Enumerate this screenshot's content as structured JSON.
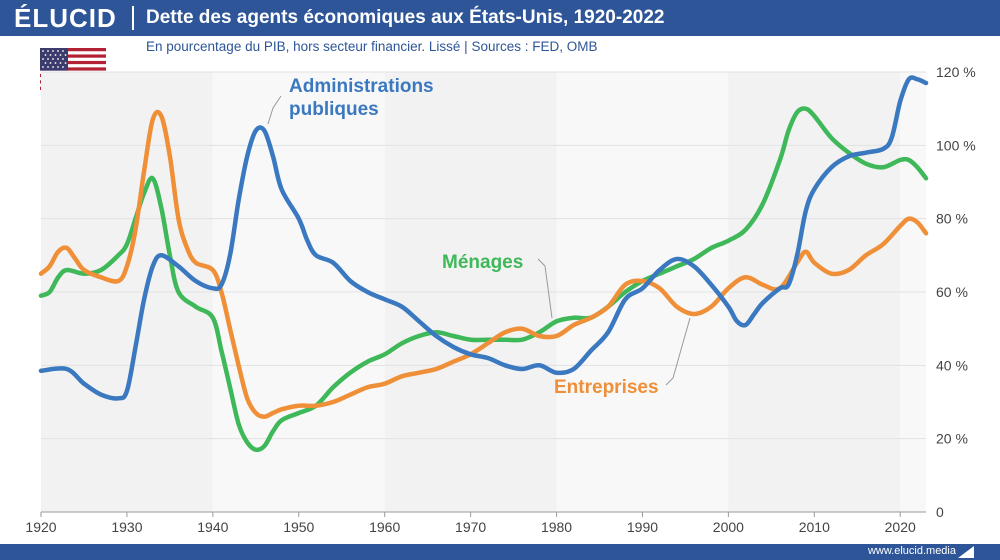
{
  "header": {
    "logo": "ÉLUCID",
    "title": "Dette des agents économiques aux États-Unis, 1920-2022",
    "subtitle": "En pourcentage du PIB, hors secteur financier. Lissé  |  Sources : FED, OMB"
  },
  "footer": {
    "url": "www.elucid.media"
  },
  "colors": {
    "brand": "#2d5598",
    "administrations": "#3a78c0",
    "menages": "#3fb85a",
    "entreprises": "#ef8f38"
  },
  "chart_data": {
    "type": "line",
    "title": "Dette des agents économiques aux États-Unis, 1920-2022",
    "subtitle": "En pourcentage du PIB, hors secteur financier. Lissé",
    "xlim": [
      1920,
      2023
    ],
    "ylim": [
      0,
      120
    ],
    "x_ticks": [
      "1920",
      "1930",
      "1940",
      "1950",
      "1960",
      "1970",
      "1980",
      "1990",
      "2000",
      "2010",
      "2020"
    ],
    "y_ticks": [
      "0",
      "20 %",
      "40 %",
      "60 %",
      "80 %",
      "100 %",
      "120 %"
    ],
    "grid": false,
    "legend": "inline labels",
    "series": [
      {
        "name": "Administrations publiques",
        "color": "#3a78c0",
        "points": [
          [
            1920,
            38.5
          ],
          [
            1923,
            39
          ],
          [
            1925,
            35
          ],
          [
            1927,
            32
          ],
          [
            1929,
            31
          ],
          [
            1930,
            33
          ],
          [
            1931,
            45
          ],
          [
            1932,
            58
          ],
          [
            1933,
            67
          ],
          [
            1934,
            70
          ],
          [
            1936,
            67
          ],
          [
            1938,
            63
          ],
          [
            1940,
            61
          ],
          [
            1941,
            62
          ],
          [
            1942,
            70
          ],
          [
            1943,
            85
          ],
          [
            1944,
            97
          ],
          [
            1945,
            104
          ],
          [
            1946,
            104
          ],
          [
            1947,
            97
          ],
          [
            1948,
            88
          ],
          [
            1950,
            80
          ],
          [
            1951,
            74
          ],
          [
            1952,
            70
          ],
          [
            1954,
            68
          ],
          [
            1956,
            63
          ],
          [
            1958,
            60
          ],
          [
            1960,
            58
          ],
          [
            1962,
            56
          ],
          [
            1964,
            52
          ],
          [
            1966,
            48
          ],
          [
            1968,
            45
          ],
          [
            1970,
            43
          ],
          [
            1972,
            42
          ],
          [
            1974,
            40
          ],
          [
            1976,
            39
          ],
          [
            1978,
            40
          ],
          [
            1980,
            38
          ],
          [
            1982,
            39
          ],
          [
            1984,
            44
          ],
          [
            1986,
            49
          ],
          [
            1988,
            58
          ],
          [
            1990,
            61
          ],
          [
            1992,
            66
          ],
          [
            1994,
            69
          ],
          [
            1996,
            67
          ],
          [
            1998,
            62
          ],
          [
            2000,
            56
          ],
          [
            2001,
            52
          ],
          [
            2002,
            51
          ],
          [
            2003,
            54
          ],
          [
            2004,
            57
          ],
          [
            2006,
            61
          ],
          [
            2007,
            62
          ],
          [
            2008,
            70
          ],
          [
            2009,
            82
          ],
          [
            2010,
            88
          ],
          [
            2012,
            94
          ],
          [
            2014,
            97
          ],
          [
            2016,
            98
          ],
          [
            2018,
            99
          ],
          [
            2019,
            102
          ],
          [
            2020,
            112
          ],
          [
            2021,
            118
          ],
          [
            2022,
            118
          ],
          [
            2023,
            117
          ]
        ]
      },
      {
        "name": "Ménages",
        "color": "#3fb85a",
        "points": [
          [
            1920,
            59
          ],
          [
            1921,
            60
          ],
          [
            1922,
            64
          ],
          [
            1923,
            66
          ],
          [
            1925,
            65
          ],
          [
            1927,
            66
          ],
          [
            1929,
            70
          ],
          [
            1930,
            73
          ],
          [
            1931,
            80
          ],
          [
            1932,
            87
          ],
          [
            1933,
            91
          ],
          [
            1934,
            83
          ],
          [
            1935,
            70
          ],
          [
            1936,
            60
          ],
          [
            1938,
            56
          ],
          [
            1940,
            53
          ],
          [
            1941,
            44
          ],
          [
            1942,
            34
          ],
          [
            1943,
            24
          ],
          [
            1944,
            19
          ],
          [
            1945,
            17
          ],
          [
            1946,
            18
          ],
          [
            1947,
            22
          ],
          [
            1948,
            25
          ],
          [
            1950,
            27
          ],
          [
            1952,
            29
          ],
          [
            1954,
            34
          ],
          [
            1956,
            38
          ],
          [
            1958,
            41
          ],
          [
            1960,
            43
          ],
          [
            1962,
            46
          ],
          [
            1964,
            48
          ],
          [
            1966,
            49
          ],
          [
            1968,
            48
          ],
          [
            1970,
            47
          ],
          [
            1972,
            47
          ],
          [
            1974,
            47
          ],
          [
            1976,
            47
          ],
          [
            1978,
            49
          ],
          [
            1980,
            52
          ],
          [
            1982,
            53
          ],
          [
            1984,
            53
          ],
          [
            1986,
            56
          ],
          [
            1988,
            60
          ],
          [
            1990,
            63
          ],
          [
            1992,
            65
          ],
          [
            1994,
            67
          ],
          [
            1996,
            69
          ],
          [
            1998,
            72
          ],
          [
            2000,
            74
          ],
          [
            2002,
            77
          ],
          [
            2004,
            84
          ],
          [
            2006,
            96
          ],
          [
            2007,
            104
          ],
          [
            2008,
            109
          ],
          [
            2009,
            110
          ],
          [
            2010,
            108
          ],
          [
            2012,
            102
          ],
          [
            2014,
            98
          ],
          [
            2016,
            95
          ],
          [
            2018,
            94
          ],
          [
            2020,
            96
          ],
          [
            2021,
            96
          ],
          [
            2022,
            94
          ],
          [
            2023,
            91
          ]
        ]
      },
      {
        "name": "Entreprises",
        "color": "#ef8f38",
        "points": [
          [
            1920,
            65
          ],
          [
            1921,
            67
          ],
          [
            1922,
            71
          ],
          [
            1923,
            72
          ],
          [
            1924,
            69
          ],
          [
            1925,
            66
          ],
          [
            1927,
            64
          ],
          [
            1929,
            63
          ],
          [
            1930,
            67
          ],
          [
            1931,
            77
          ],
          [
            1932,
            93
          ],
          [
            1933,
            107
          ],
          [
            1934,
            108
          ],
          [
            1935,
            97
          ],
          [
            1936,
            80
          ],
          [
            1937,
            72
          ],
          [
            1938,
            68
          ],
          [
            1940,
            66
          ],
          [
            1941,
            60
          ],
          [
            1942,
            50
          ],
          [
            1943,
            40
          ],
          [
            1944,
            31
          ],
          [
            1945,
            27
          ],
          [
            1946,
            26
          ],
          [
            1947,
            27
          ],
          [
            1948,
            28
          ],
          [
            1950,
            29
          ],
          [
            1952,
            29
          ],
          [
            1954,
            30
          ],
          [
            1956,
            32
          ],
          [
            1958,
            34
          ],
          [
            1960,
            35
          ],
          [
            1962,
            37
          ],
          [
            1964,
            38
          ],
          [
            1966,
            39
          ],
          [
            1968,
            41
          ],
          [
            1970,
            43
          ],
          [
            1972,
            46
          ],
          [
            1974,
            49
          ],
          [
            1976,
            50
          ],
          [
            1978,
            48
          ],
          [
            1980,
            48
          ],
          [
            1982,
            51
          ],
          [
            1984,
            53
          ],
          [
            1986,
            56
          ],
          [
            1988,
            62
          ],
          [
            1990,
            63
          ],
          [
            1992,
            61
          ],
          [
            1994,
            56
          ],
          [
            1996,
            54
          ],
          [
            1998,
            56
          ],
          [
            2000,
            61
          ],
          [
            2002,
            64
          ],
          [
            2004,
            62
          ],
          [
            2006,
            61
          ],
          [
            2008,
            68
          ],
          [
            2009,
            71
          ],
          [
            2010,
            68
          ],
          [
            2012,
            65
          ],
          [
            2014,
            66
          ],
          [
            2016,
            70
          ],
          [
            2018,
            73
          ],
          [
            2020,
            78
          ],
          [
            2021,
            80
          ],
          [
            2022,
            79
          ],
          [
            2023,
            76
          ]
        ]
      }
    ],
    "annotations": [
      {
        "text": "Administrations publiques",
        "series": "Administrations publiques"
      },
      {
        "text": "Ménages",
        "series": "Ménages"
      },
      {
        "text": "Entreprises",
        "series": "Entreprises"
      }
    ]
  }
}
